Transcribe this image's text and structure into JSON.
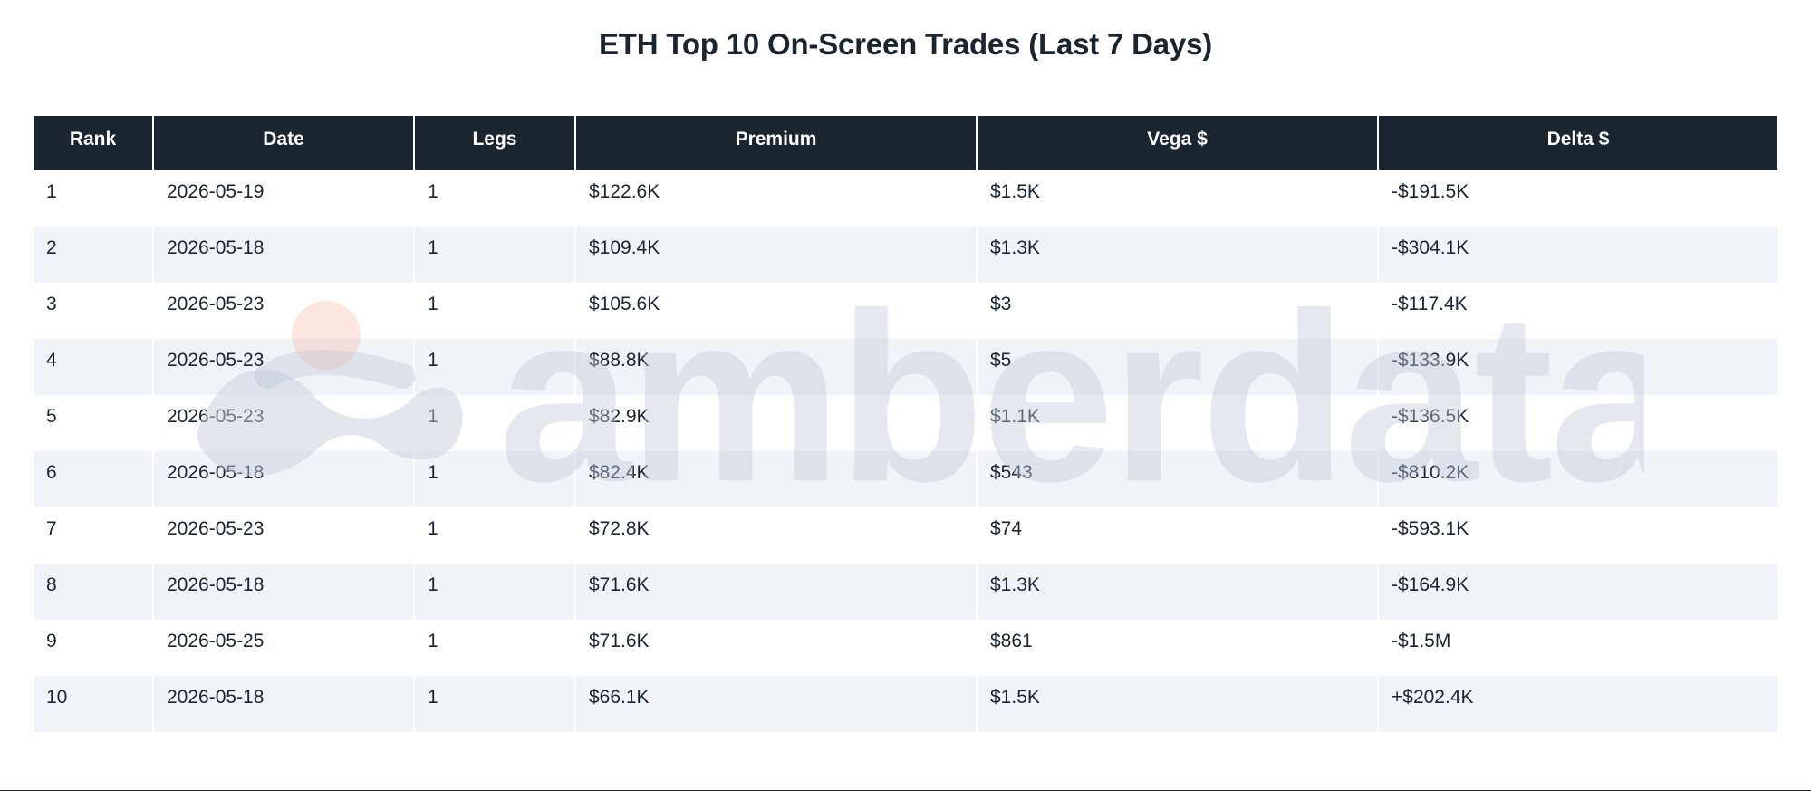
{
  "title": "ETH Top 10 On-Screen Trades (Last 7 Days)",
  "watermark": {
    "text": "amberdata"
  },
  "chart_data": {
    "type": "table",
    "title": "ETH Top 10 On-Screen Trades (Last 7 Days)",
    "columns": [
      "Rank",
      "Date",
      "Legs",
      "Premium",
      "Vega $",
      "Delta $"
    ],
    "rows": [
      [
        "1",
        "2026-05-19",
        "1",
        "$122.6K",
        "$1.5K",
        "-$191.5K"
      ],
      [
        "2",
        "2026-05-18",
        "1",
        "$109.4K",
        "$1.3K",
        "-$304.1K"
      ],
      [
        "3",
        "2026-05-23",
        "1",
        "$105.6K",
        "$3",
        "-$117.4K"
      ],
      [
        "4",
        "2026-05-23",
        "1",
        "$88.8K",
        "$5",
        "-$133.9K"
      ],
      [
        "5",
        "2026-05-23",
        "1",
        "$82.9K",
        "$1.1K",
        "-$136.5K"
      ],
      [
        "6",
        "2026-05-18",
        "1",
        "$82.4K",
        "$543",
        "-$810.2K"
      ],
      [
        "7",
        "2026-05-23",
        "1",
        "$72.8K",
        "$74",
        "-$593.1K"
      ],
      [
        "8",
        "2026-05-18",
        "1",
        "$71.6K",
        "$1.3K",
        "-$164.9K"
      ],
      [
        "9",
        "2026-05-25",
        "1",
        "$71.6K",
        "$861",
        "-$1.5M"
      ],
      [
        "10",
        "2026-05-18",
        "1",
        "$66.1K",
        "$1.5K",
        "+$202.4K"
      ]
    ]
  }
}
